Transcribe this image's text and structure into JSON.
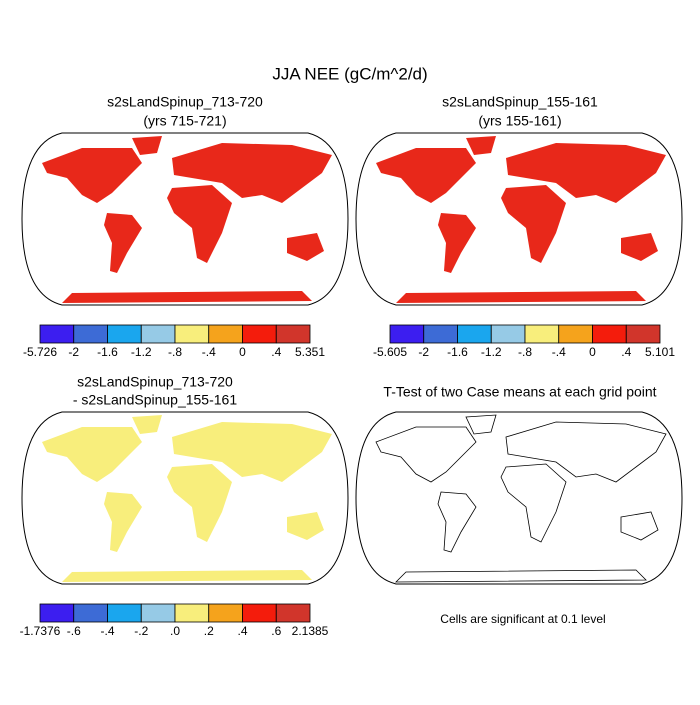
{
  "title": "JJA NEE (gC/m^2/d)",
  "panels": [
    {
      "title": [
        "s2sLandSpinup_713-720",
        "(yrs 715-721)"
      ],
      "colorbar": {
        "labels": [
          "-5.726",
          "-2",
          "-1.6",
          "-1.2",
          "-.8",
          "-.4",
          "0",
          ".4",
          "5.351"
        ],
        "colors": [
          "#3c1ef0",
          "#3d6bd6",
          "#1aa6ee",
          "#96cae6",
          "#f8ee7c",
          "#f5a31c",
          "#f41c0c",
          "#d1352b"
        ]
      }
    },
    {
      "title": [
        "s2sLandSpinup_155-161",
        "(yrs 155-161)"
      ],
      "colorbar": {
        "labels": [
          "-5.605",
          "-2",
          "-1.6",
          "-1.2",
          "-.8",
          "-.4",
          "0",
          ".4",
          "5.101"
        ],
        "colors": [
          "#3c1ef0",
          "#3d6bd6",
          "#1aa6ee",
          "#96cae6",
          "#f8ee7c",
          "#f5a31c",
          "#f41c0c",
          "#d1352b"
        ]
      }
    },
    {
      "title": [
        "s2sLandSpinup_713-720",
        "- s2sLandSpinup_155-161"
      ],
      "colorbar": {
        "labels": [
          "-1.7376",
          "-.6",
          "-.4",
          "-.2",
          ".0",
          ".2",
          ".4",
          ".6",
          "2.1385"
        ],
        "colors": [
          "#3c1ef0",
          "#3d6bd6",
          "#1aa6ee",
          "#96cae6",
          "#f8ee7c",
          "#f5a31c",
          "#f41c0c",
          "#d1352b"
        ]
      }
    },
    {
      "title": [
        "T-Test of two Case means at each grid point"
      ],
      "note": "Cells are significant at 0.1 level"
    }
  ]
}
